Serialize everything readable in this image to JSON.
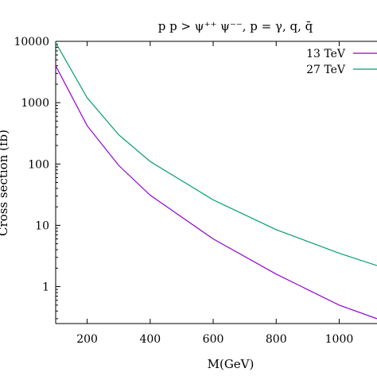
{
  "chart_data": {
    "type": "line",
    "title": "p p > ψ⁺⁺ ψ⁻⁻, p = γ, q, q̄",
    "xlabel": "M(GeV)",
    "ylabel": "Cross section (fb)",
    "xlim": [
      100,
      1120
    ],
    "ylim": [
      0.25,
      10000
    ],
    "yscale": "log",
    "grid": false,
    "legend_position": "top-right",
    "x_ticks": [
      200,
      400,
      600,
      800,
      1000
    ],
    "x_tick_labels": [
      "200",
      "400",
      "600",
      "800",
      "1000"
    ],
    "y_ticks": [
      1,
      10,
      100,
      1000,
      10000
    ],
    "y_tick_labels": [
      "1",
      "10",
      "100",
      "1000",
      "10000"
    ],
    "series": [
      {
        "name": "13 TeV",
        "color": "#9400d3",
        "x": [
          100,
          200,
          300,
          400,
          600,
          800,
          1000,
          1120
        ],
        "y": [
          4000,
          420,
          95,
          31,
          6,
          1.6,
          0.5,
          0.3
        ]
      },
      {
        "name": "27 TeV",
        "color": "#009e73",
        "x": [
          100,
          200,
          300,
          400,
          600,
          800,
          1000,
          1120
        ],
        "y": [
          9500,
          1200,
          300,
          110,
          26,
          8.5,
          3.5,
          2.2
        ]
      }
    ]
  }
}
